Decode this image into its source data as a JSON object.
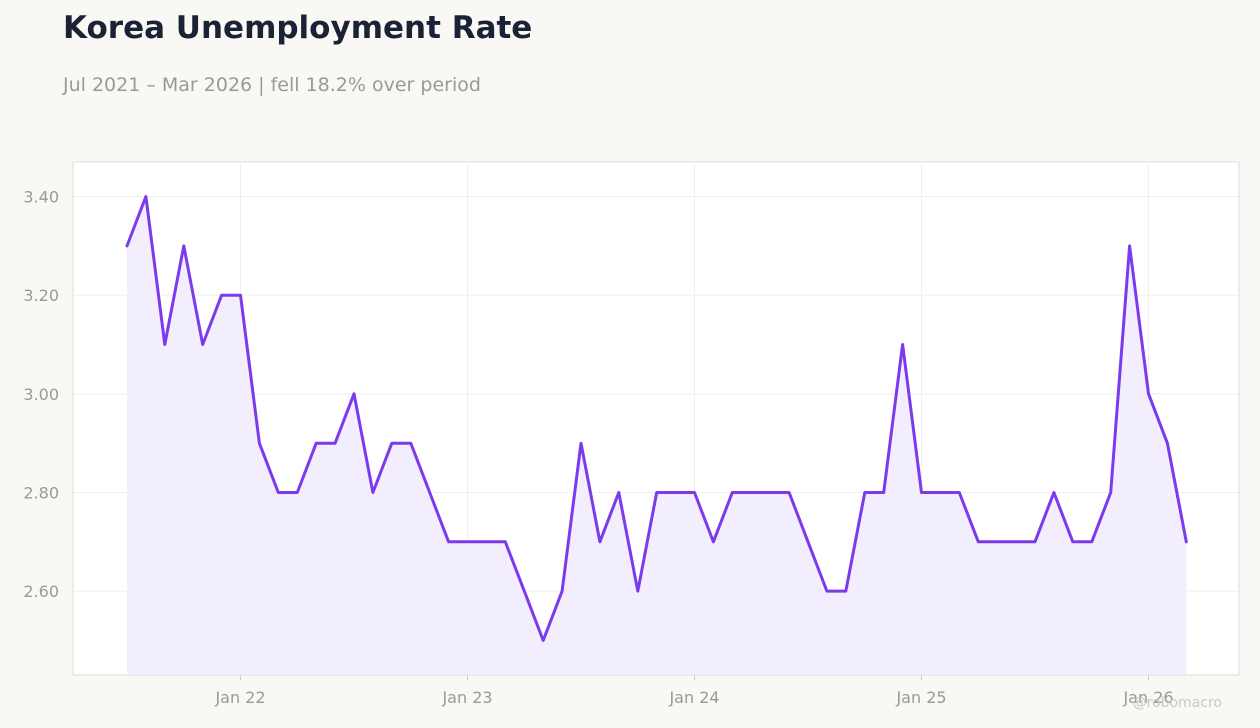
{
  "header": {
    "title": "Korea Unemployment Rate",
    "subtitle": "Jul 2021 – Mar 2026 | fell 18.2% over period"
  },
  "watermark": "@robomacro",
  "colors": {
    "line": "#7c3aed",
    "fill": "#f1ecfd",
    "background": "#f9f8f5",
    "plot_background": "#ffffff",
    "grid": "#efefef",
    "tick_text": "#999999",
    "title": "#1b2236"
  },
  "chart_data": {
    "type": "area",
    "x_start": "2021-07",
    "x_end": "2026-03",
    "values": [
      3.3,
      3.4,
      3.1,
      3.3,
      3.1,
      3.2,
      3.2,
      2.9,
      2.8,
      2.8,
      2.9,
      2.9,
      3.0,
      2.8,
      2.9,
      2.9,
      2.8,
      2.7,
      2.7,
      2.7,
      2.7,
      2.6,
      2.5,
      2.6,
      2.9,
      2.7,
      2.8,
      2.6,
      2.8,
      2.8,
      2.8,
      2.7,
      2.8,
      2.8,
      2.8,
      2.8,
      2.7,
      2.6,
      2.6,
      2.8,
      2.8,
      3.1,
      2.8,
      2.8,
      2.8,
      2.7,
      2.7,
      2.7,
      2.7,
      2.8,
      2.7,
      2.7,
      2.8,
      3.3,
      3.0,
      2.9,
      2.7
    ],
    "ylim": [
      2.43,
      3.47
    ],
    "y_ticks": [
      2.6,
      2.8,
      3.0,
      3.2,
      3.4
    ],
    "y_tick_labels": [
      "2.60",
      "2.80",
      "3.00",
      "3.20",
      "3.40"
    ],
    "x_ticks": [
      "2022-01",
      "2023-01",
      "2024-01",
      "2025-01",
      "2026-01"
    ],
    "x_tick_labels": [
      "Jan 22",
      "Jan 23",
      "Jan 24",
      "Jan 25",
      "Jan 26"
    ],
    "xlabel": "",
    "ylabel": "",
    "grid": true,
    "legend": "none"
  }
}
